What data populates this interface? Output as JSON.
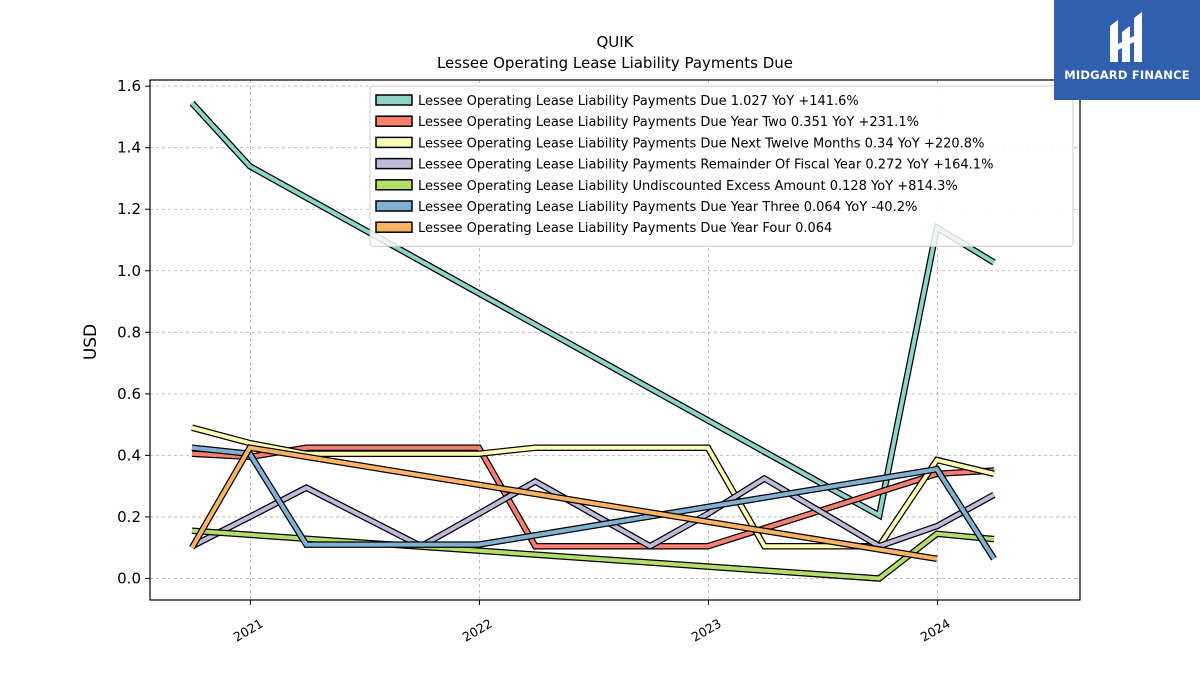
{
  "chart_data": {
    "type": "line",
    "title": "QUIK",
    "subtitle": "Lessee Operating Lease Liability Payments Due",
    "xlabel": "",
    "ylabel": "USD",
    "x_ticks": [
      "2021",
      "2022",
      "2023",
      "2024"
    ],
    "y_ticks": [
      "0.0",
      "0.2",
      "0.4",
      "0.6",
      "0.8",
      "1.0",
      "1.2",
      "1.4",
      "1.6"
    ],
    "xlim": [
      "2020-07-25",
      "2024-08-15"
    ],
    "ylim": [
      -0.07,
      1.62
    ],
    "grid": true,
    "legend_position": "top-right",
    "series": [
      {
        "name": "Lessee Operating Lease Liability Payments Due",
        "legend": "Lessee Operating Lease Liability Payments Due  1.027 YoY +141.6%",
        "color": "#8dd3c7",
        "x": [
          "2020-09-30",
          "2020-12-31",
          "2023-09-30",
          "2023-12-31",
          "2024-03-31"
        ],
        "y": [
          1.545,
          1.34,
          0.205,
          1.14,
          1.027
        ]
      },
      {
        "name": "Lessee Operating Lease Liability Payments Due Year Two",
        "legend": "Lessee Operating Lease Liability Payments Due Year Two  0.351 YoY +231.1%",
        "color": "#fb8072",
        "x": [
          "2020-09-30",
          "2020-12-31",
          "2021-03-31",
          "2021-12-31",
          "2022-03-31",
          "2022-12-31",
          "2023-12-31",
          "2024-03-31"
        ],
        "y": [
          0.405,
          0.395,
          0.425,
          0.425,
          0.105,
          0.105,
          0.34,
          0.351
        ]
      },
      {
        "name": "Lessee Operating Lease Liability Payments Due Next Twelve Months",
        "legend": "Lessee Operating Lease Liability Payments Due Next Twelve Months  0.34 YoY +220.8%",
        "color": "#ffffb3",
        "x": [
          "2020-09-30",
          "2020-12-31",
          "2021-03-31",
          "2021-12-31",
          "2022-03-31",
          "2022-12-31",
          "2023-03-31",
          "2023-09-30",
          "2023-12-31",
          "2024-03-31"
        ],
        "y": [
          0.49,
          0.44,
          0.405,
          0.405,
          0.425,
          0.425,
          0.105,
          0.105,
          0.385,
          0.34
        ]
      },
      {
        "name": "Lessee Operating Lease Liability Payments Remainder Of Fiscal Year",
        "legend": "Lessee Operating Lease Liability Payments Remainder Of Fiscal Year  0.272 YoY +164.1%",
        "color": "#bebada",
        "x": [
          "2020-09-30",
          "2020-12-31",
          "2021-03-31",
          "2021-09-30",
          "2021-12-31",
          "2022-03-31",
          "2022-09-30",
          "2022-12-31",
          "2023-03-31",
          "2023-09-30",
          "2023-12-31",
          "2024-03-31"
        ],
        "y": [
          0.105,
          0.2,
          0.295,
          0.105,
          0.21,
          0.315,
          0.105,
          0.21,
          0.325,
          0.105,
          0.17,
          0.272
        ]
      },
      {
        "name": "Lessee Operating Lease Liability Undiscounted Excess Amount",
        "legend": "Lessee Operating Lease Liability Undiscounted Excess Amount  0.128 YoY +814.3%",
        "color": "#b3de69",
        "x": [
          "2020-09-30",
          "2023-09-30",
          "2023-12-31",
          "2024-03-31"
        ],
        "y": [
          0.155,
          0.0,
          0.145,
          0.128
        ]
      },
      {
        "name": "Lessee Operating Lease Liability Payments Due Year Three",
        "legend": "Lessee Operating Lease Liability Payments Due Year Three  0.064 YoY -40.2%",
        "color": "#80b1d3",
        "x": [
          "2020-09-30",
          "2020-12-31",
          "2021-03-31",
          "2021-12-31",
          "2023-12-31",
          "2024-03-31"
        ],
        "y": [
          0.425,
          0.405,
          0.11,
          0.11,
          0.355,
          0.064
        ]
      },
      {
        "name": "Lessee Operating Lease Liability Payments Due Year Four",
        "legend": "Lessee Operating Lease Liability Payments Due Year Four  0.064",
        "color": "#fdb462",
        "x": [
          "2020-09-30",
          "2020-12-31",
          "2023-12-31"
        ],
        "y": [
          0.1,
          0.425,
          0.064
        ]
      }
    ]
  },
  "logo": {
    "text": "MIDGARD FINANCE",
    "background": "#2f5fae"
  }
}
